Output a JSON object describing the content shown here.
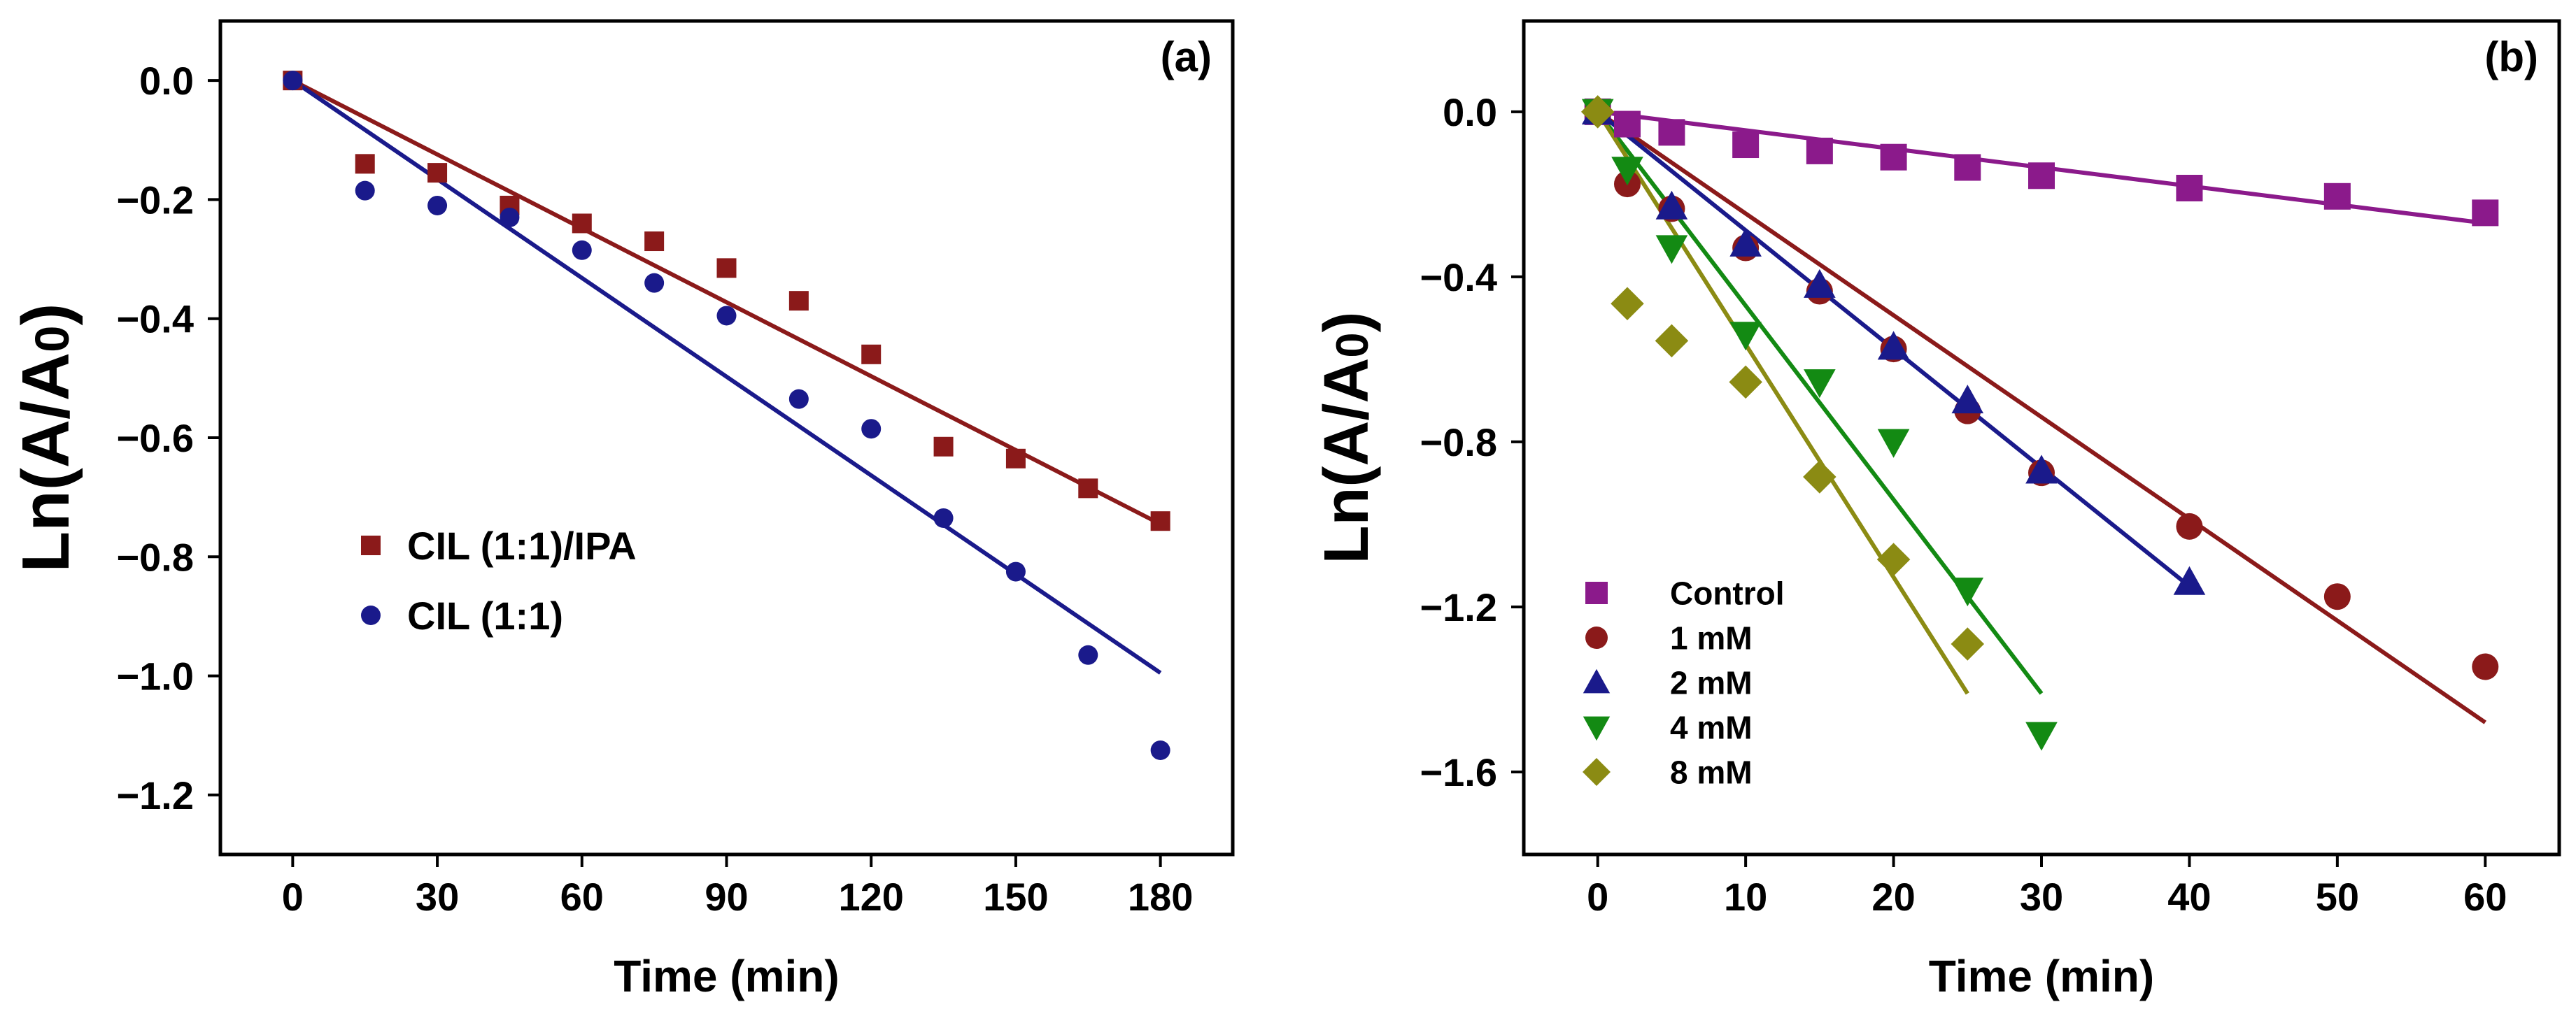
{
  "chart_data": [
    {
      "type": "scatter",
      "panel_label": "(a)",
      "xlabel": "Time (min)",
      "ylabel": "Ln(A/A",
      "ylabel_sub": "0",
      "ylabel_close": ")",
      "xlim": [
        -15,
        195
      ],
      "ylim": [
        -1.3,
        0.1
      ],
      "xticks": [
        0,
        30,
        60,
        90,
        120,
        150,
        180
      ],
      "xtick_labels": [
        "0",
        "30",
        "60",
        "90",
        "120",
        "150",
        "180"
      ],
      "yticks": [
        0.0,
        -0.2,
        -0.4,
        -0.6,
        -0.8,
        -1.0,
        -1.2
      ],
      "ytick_labels": [
        "0.0",
        "−0.2",
        "−0.4",
        "−0.6",
        "−0.8",
        "−1.0",
        "−1.2"
      ],
      "legend_position": "center-left",
      "series": [
        {
          "name": "CIL (1:1)/IPA",
          "marker": "square",
          "color": "#8B1A1A",
          "x": [
            0,
            15,
            30,
            45,
            60,
            75,
            90,
            105,
            120,
            135,
            150,
            165,
            180
          ],
          "y": [
            0.0,
            -0.14,
            -0.155,
            -0.21,
            -0.24,
            -0.27,
            -0.315,
            -0.37,
            -0.46,
            -0.615,
            -0.635,
            -0.685,
            -0.74
          ],
          "fit": [
            [
              0,
              0.0
            ],
            [
              180,
              -0.745
            ]
          ]
        },
        {
          "name": "CIL (1:1)",
          "marker": "circle",
          "color": "#1A1A8B",
          "x": [
            0,
            15,
            30,
            45,
            60,
            75,
            90,
            105,
            120,
            135,
            150,
            165,
            180
          ],
          "y": [
            0.0,
            -0.185,
            -0.21,
            -0.23,
            -0.285,
            -0.34,
            -0.395,
            -0.535,
            -0.585,
            -0.735,
            -0.825,
            -0.965,
            -1.125
          ],
          "fit": [
            [
              0,
              0.0
            ],
            [
              180,
              -0.995
            ]
          ]
        }
      ]
    },
    {
      "type": "scatter",
      "panel_label": "(b)",
      "xlabel": "Time (min)",
      "ylabel": "Ln(A/A",
      "ylabel_sub": "0",
      "ylabel_close": ")",
      "xlim": [
        -5,
        65
      ],
      "ylim": [
        -1.8,
        0.22
      ],
      "xticks": [
        0,
        10,
        20,
        30,
        40,
        50,
        60
      ],
      "xtick_labels": [
        "0",
        "10",
        "20",
        "30",
        "40",
        "50",
        "60"
      ],
      "yticks": [
        0.0,
        -0.4,
        -0.8,
        -1.2,
        -1.6
      ],
      "ytick_labels": [
        "0.0",
        "−0.4",
        "−0.8",
        "−1.2",
        "−1.6"
      ],
      "legend_position": "lower-left",
      "series": [
        {
          "name": "Control",
          "marker": "square",
          "color": "#8B1A8B",
          "x": [
            0,
            2,
            5,
            10,
            15,
            20,
            25,
            30,
            40,
            50,
            60
          ],
          "y": [
            0.0,
            -0.03,
            -0.05,
            -0.08,
            -0.095,
            -0.11,
            -0.135,
            -0.155,
            -0.185,
            -0.205,
            -0.245
          ],
          "fit": [
            [
              0,
              0.0
            ],
            [
              60,
              -0.27
            ]
          ]
        },
        {
          "name": "1 mM",
          "marker": "circle",
          "color": "#8B1A1A",
          "x": [
            0,
            2,
            5,
            10,
            15,
            20,
            25,
            30,
            40,
            50,
            60
          ],
          "y": [
            0.0,
            -0.175,
            -0.235,
            -0.33,
            -0.435,
            -0.575,
            -0.725,
            -0.875,
            -1.005,
            -1.175,
            -1.345
          ],
          "fit": [
            [
              0,
              0.0
            ],
            [
              60,
              -1.48
            ]
          ]
        },
        {
          "name": "2 mM",
          "marker": "triangle-up",
          "color": "#1A1A8B",
          "x": [
            0,
            5,
            10,
            15,
            20,
            25,
            30,
            40
          ],
          "y": [
            0.0,
            -0.23,
            -0.32,
            -0.42,
            -0.57,
            -0.7,
            -0.87,
            -1.14
          ],
          "fit": [
            [
              0,
              0.0
            ],
            [
              40,
              -1.15
            ]
          ]
        },
        {
          "name": "4 mM",
          "marker": "triangle-down",
          "color": "#138A13",
          "x": [
            0,
            2,
            5,
            10,
            15,
            20,
            25,
            30
          ],
          "y": [
            0.0,
            -0.14,
            -0.33,
            -0.54,
            -0.655,
            -0.8,
            -1.16,
            -1.51
          ],
          "fit": [
            [
              0,
              0.0
            ],
            [
              30,
              -1.41
            ]
          ]
        },
        {
          "name": "8 mM",
          "marker": "diamond",
          "color": "#8B8B13",
          "x": [
            0,
            2,
            5,
            10,
            15,
            20,
            25
          ],
          "y": [
            0.0,
            -0.465,
            -0.555,
            -0.655,
            -0.885,
            -1.085,
            -1.29
          ],
          "fit": [
            [
              0,
              0.0
            ],
            [
              25,
              -1.41
            ]
          ]
        }
      ]
    }
  ]
}
